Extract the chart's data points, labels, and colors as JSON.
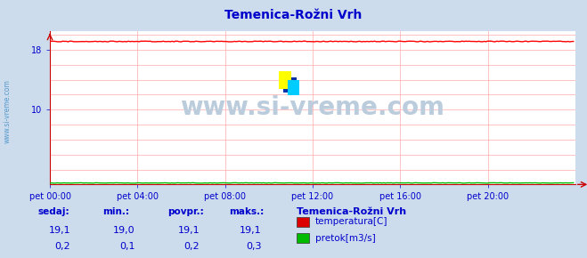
{
  "title": "Temenica-Rožni Vrh",
  "title_color": "#0000cc",
  "bg_color": "#ccdcec",
  "plot_bg_color": "#ffffff",
  "watermark": "www.si-vreme.com",
  "watermark_color": "#bbccdd",
  "x_tick_labels": [
    "pet 00:00",
    "pet 04:00",
    "pet 08:00",
    "pet 12:00",
    "pet 16:00",
    "pet 20:00"
  ],
  "x_tick_positions": [
    0,
    48,
    96,
    144,
    192,
    240
  ],
  "yticks_labeled": [
    10,
    18
  ],
  "yticks_grid": [
    2,
    4,
    6,
    8,
    10,
    12,
    14,
    16,
    18,
    20
  ],
  "ylim": [
    0,
    20.5
  ],
  "xlim": [
    0,
    288
  ],
  "temp_value": 19.1,
  "pretok_value": 0.2,
  "n_points": 288,
  "grid_color": "#ffaaaa",
  "line_color_temp": "#ff0000",
  "line_color_pretok": "#00bb00",
  "arrow_color": "#cc0000",
  "axis_color": "#cc0000",
  "text_color": "#0000cc",
  "legend_title": "Temenica-Rožni Vrh",
  "legend_items": [
    {
      "label": "temperatura[C]",
      "color": "#dd0000"
    },
    {
      "label": "pretok[m3/s]",
      "color": "#00bb00"
    }
  ],
  "stats_headers": [
    "sedaj:",
    "min.:",
    "povpr.:",
    "maks.:"
  ],
  "stats_temp": [
    "19,1",
    "19,0",
    "19,1",
    "19,1"
  ],
  "stats_pretok": [
    "0,2",
    "0,1",
    "0,2",
    "0,3"
  ],
  "sidebar_text": "www.si-vreme.com",
  "sidebar_color": "#5599cc"
}
